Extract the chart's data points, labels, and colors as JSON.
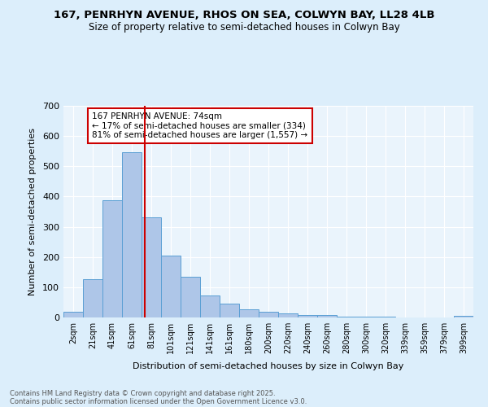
{
  "title1": "167, PENRHYN AVENUE, RHOS ON SEA, COLWYN BAY, LL28 4LB",
  "title2": "Size of property relative to semi-detached houses in Colwyn Bay",
  "xlabel": "Distribution of semi-detached houses by size in Colwyn Bay",
  "ylabel": "Number of semi-detached properties",
  "footer1": "Contains HM Land Registry data © Crown copyright and database right 2025.",
  "footer2": "Contains public sector information licensed under the Open Government Licence v3.0.",
  "categories": [
    "2sqm",
    "21sqm",
    "41sqm",
    "61sqm",
    "81sqm",
    "101sqm",
    "121sqm",
    "141sqm",
    "161sqm",
    "180sqm",
    "200sqm",
    "220sqm",
    "240sqm",
    "260sqm",
    "280sqm",
    "300sqm",
    "320sqm",
    "339sqm",
    "359sqm",
    "379sqm",
    "399sqm"
  ],
  "values": [
    20,
    127,
    387,
    547,
    332,
    204,
    135,
    72,
    45,
    26,
    20,
    14,
    9,
    7,
    4,
    2,
    2,
    1,
    1,
    1,
    6
  ],
  "bar_color": "#aec6e8",
  "bar_edge_color": "#5a9fd4",
  "marker_color": "#cc0000",
  "annotation_title": "167 PENRHYN AVENUE: 74sqm",
  "annotation_line1": "← 17% of semi-detached houses are smaller (334)",
  "annotation_line2": "81% of semi-detached houses are larger (1,557) →",
  "ylim": [
    0,
    700
  ],
  "yticks": [
    0,
    100,
    200,
    300,
    400,
    500,
    600,
    700
  ],
  "bg_color": "#dceefb",
  "plot_bg_color": "#eaf4fc"
}
